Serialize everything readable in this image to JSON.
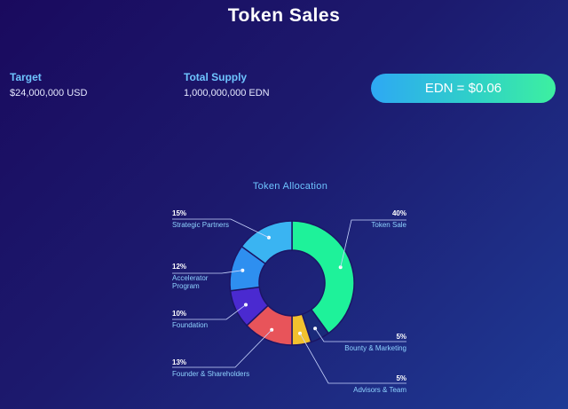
{
  "header": {
    "title": "Token Sales"
  },
  "stats": {
    "target": {
      "label": "Target",
      "value": "$24,000,000 USD"
    },
    "supply": {
      "label": "Total Supply",
      "value": "1,000,000,000 EDN"
    }
  },
  "price_button": {
    "label": "EDN = $0.06"
  },
  "chart_data": {
    "type": "pie",
    "title": "Token Allocation",
    "categories": [
      "Token Sale",
      "Bounty & Marketing",
      "Advisors & Team",
      "Founder & Shareholders",
      "Foundation",
      "Accelerator Program",
      "Strategic Partners"
    ],
    "values": [
      40,
      5,
      5,
      13,
      10,
      12,
      15
    ],
    "labels_pct": [
      "40%",
      "5%",
      "5%",
      "13%",
      "10%",
      "12%",
      "15%"
    ],
    "colors": [
      "#1ef29a",
      "#1a2a7a",
      "#f2c12e",
      "#e8545a",
      "#4a2ad0",
      "#2e8ff0",
      "#3ab4f2"
    ]
  }
}
